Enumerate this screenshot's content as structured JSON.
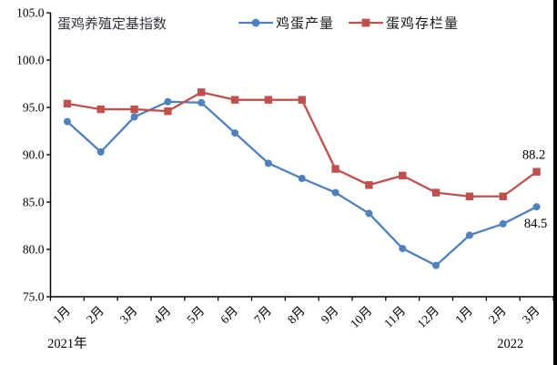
{
  "chart_data": {
    "type": "line",
    "title": "蛋鸡养殖定基指数",
    "categories": [
      "1月",
      "2月",
      "3月",
      "4月",
      "5月",
      "6月",
      "7月",
      "8月",
      "9月",
      "10月",
      "11月",
      "12月",
      "1月",
      "2月",
      "3月"
    ],
    "x_axis_year_labels": [
      {
        "text": "2021年",
        "category_index": 0,
        "dx": 0
      },
      {
        "text": "2022",
        "category_index": 13,
        "dx": 8
      }
    ],
    "y_tick_labels": [
      "105.0",
      "100.0",
      "95.0",
      "90.0",
      "85.0",
      "80.0",
      "75.0"
    ],
    "ylim": [
      75.0,
      105.0
    ],
    "grid": false,
    "legend_position": "top",
    "series": [
      {
        "name": "鸡蛋产量",
        "color": "#4F81BD",
        "marker": "circle",
        "values": [
          93.5,
          90.3,
          94.0,
          95.6,
          95.5,
          92.3,
          89.1,
          87.5,
          86.0,
          83.8,
          80.1,
          78.3,
          81.5,
          82.7,
          84.5
        ],
        "end_label": "84.5"
      },
      {
        "name": "蛋鸡存栏量",
        "color": "#C0504D",
        "marker": "square",
        "values": [
          95.4,
          94.8,
          94.8,
          94.6,
          96.6,
          95.8,
          95.8,
          95.8,
          88.5,
          86.8,
          87.8,
          86.0,
          85.6,
          85.6,
          88.2
        ],
        "end_label": "88.2"
      }
    ]
  }
}
